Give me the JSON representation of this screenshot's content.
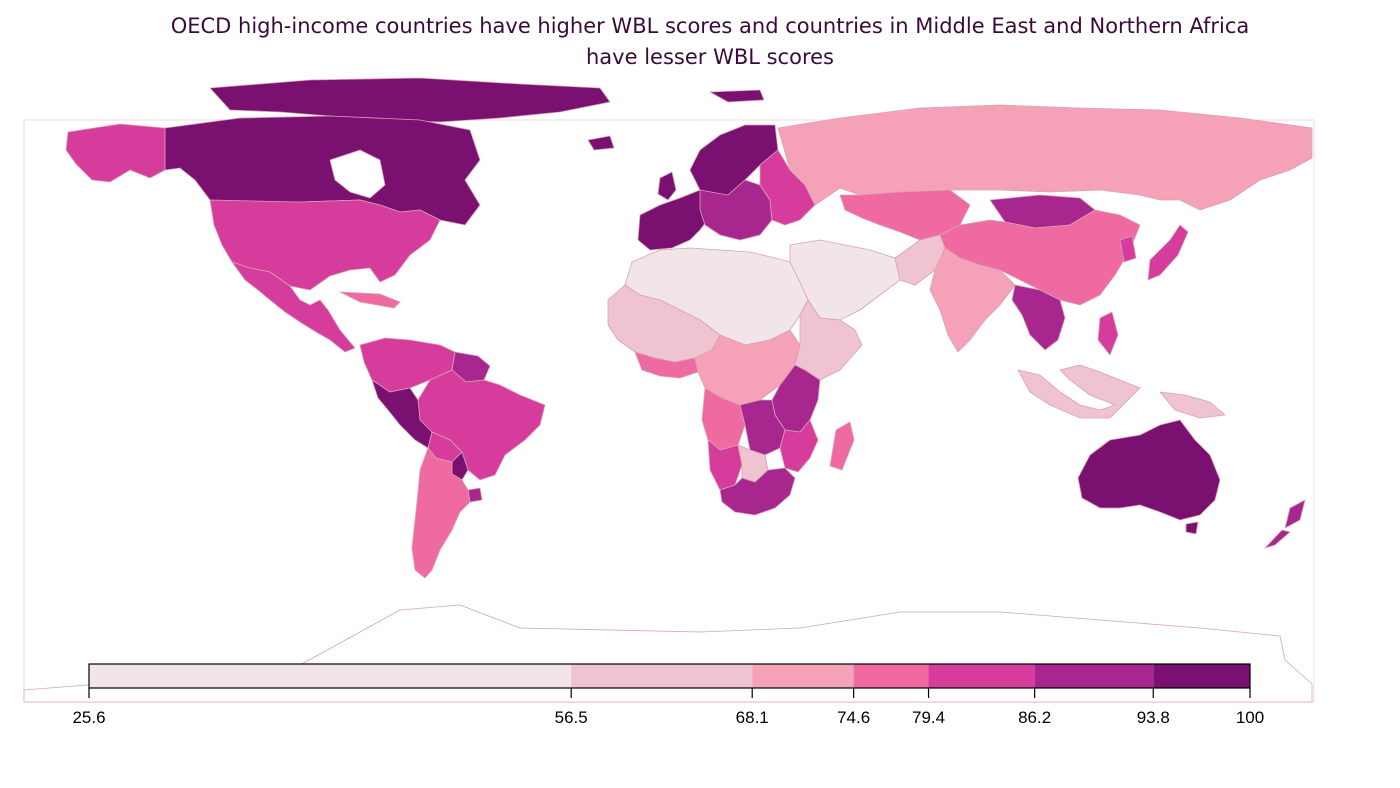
{
  "title": {
    "line1": "OECD high-income countries have higher WBL scores and countries in Middle East and Northern Africa",
    "line2": "have lesser WBL scores"
  },
  "legend": {
    "breaks": [
      25.6,
      56.5,
      68.1,
      74.6,
      79.4,
      86.2,
      93.8,
      100
    ],
    "break_labels": [
      "25.6",
      "56.5",
      "68.1",
      "74.6",
      "79.4",
      "86.2",
      "93.8",
      "100"
    ],
    "colors": [
      "#f2e5ea",
      "#efc3cf",
      "#f5a2b8",
      "#f06aa2",
      "#d63c9c",
      "#a8278e",
      "#7a1070"
    ]
  },
  "map": {
    "type": "choropleth",
    "projection": "equirectangular world map",
    "border_color": "#d7a2b4",
    "regions": [
      {
        "name": "Canada",
        "class": 6
      },
      {
        "name": "Greenland & Arctic islands",
        "class": 6
      },
      {
        "name": "Alaska",
        "class": 4
      },
      {
        "name": "United States",
        "class": 4
      },
      {
        "name": "Mexico & Central America",
        "class": 4
      },
      {
        "name": "Caribbean",
        "class": 3
      },
      {
        "name": "Colombia & Venezuela",
        "class": 4
      },
      {
        "name": "Guianas",
        "class": 5
      },
      {
        "name": "Peru",
        "class": 6
      },
      {
        "name": "Brazil",
        "class": 4
      },
      {
        "name": "Bolivia",
        "class": 4
      },
      {
        "name": "Paraguay",
        "class": 6
      },
      {
        "name": "Uruguay",
        "class": 5
      },
      {
        "name": "Argentina & Chile",
        "class": 3
      },
      {
        "name": "Western & Northern Europe",
        "class": 6
      },
      {
        "name": "Central Europe",
        "class": 5
      },
      {
        "name": "Eastern Europe",
        "class": 4
      },
      {
        "name": "Russia",
        "class": 2
      },
      {
        "name": "Central Asia",
        "class": 3
      },
      {
        "name": "Mongolia",
        "class": 5
      },
      {
        "name": "China",
        "class": 3
      },
      {
        "name": "Korea & Japan",
        "class": 4
      },
      {
        "name": "Middle East",
        "class": 0
      },
      {
        "name": "Iran & Afghanistan",
        "class": 1
      },
      {
        "name": "South Asia",
        "class": 2
      },
      {
        "name": "Southeast Asia mainland",
        "class": 5
      },
      {
        "name": "Philippines",
        "class": 4
      },
      {
        "name": "Indonesia & Malaysia",
        "class": 1
      },
      {
        "name": "Papua New Guinea",
        "class": 1
      },
      {
        "name": "North Africa",
        "class": 0
      },
      {
        "name": "West Africa",
        "class": 1
      },
      {
        "name": "Coastal West Africa",
        "class": 3
      },
      {
        "name": "Central Africa",
        "class": 2
      },
      {
        "name": "Horn of Africa",
        "class": 1
      },
      {
        "name": "East Africa",
        "class": 5
      },
      {
        "name": "Angola",
        "class": 3
      },
      {
        "name": "Zambia & Zimbabwe",
        "class": 5
      },
      {
        "name": "Namibia",
        "class": 4
      },
      {
        "name": "Botswana",
        "class": 1
      },
      {
        "name": "South Africa",
        "class": 5
      },
      {
        "name": "Mozambique",
        "class": 4
      },
      {
        "name": "Madagascar",
        "class": 3
      },
      {
        "name": "Australia",
        "class": 6
      },
      {
        "name": "New Zealand",
        "class": 5
      },
      {
        "name": "Antarctica",
        "class": null
      }
    ]
  }
}
